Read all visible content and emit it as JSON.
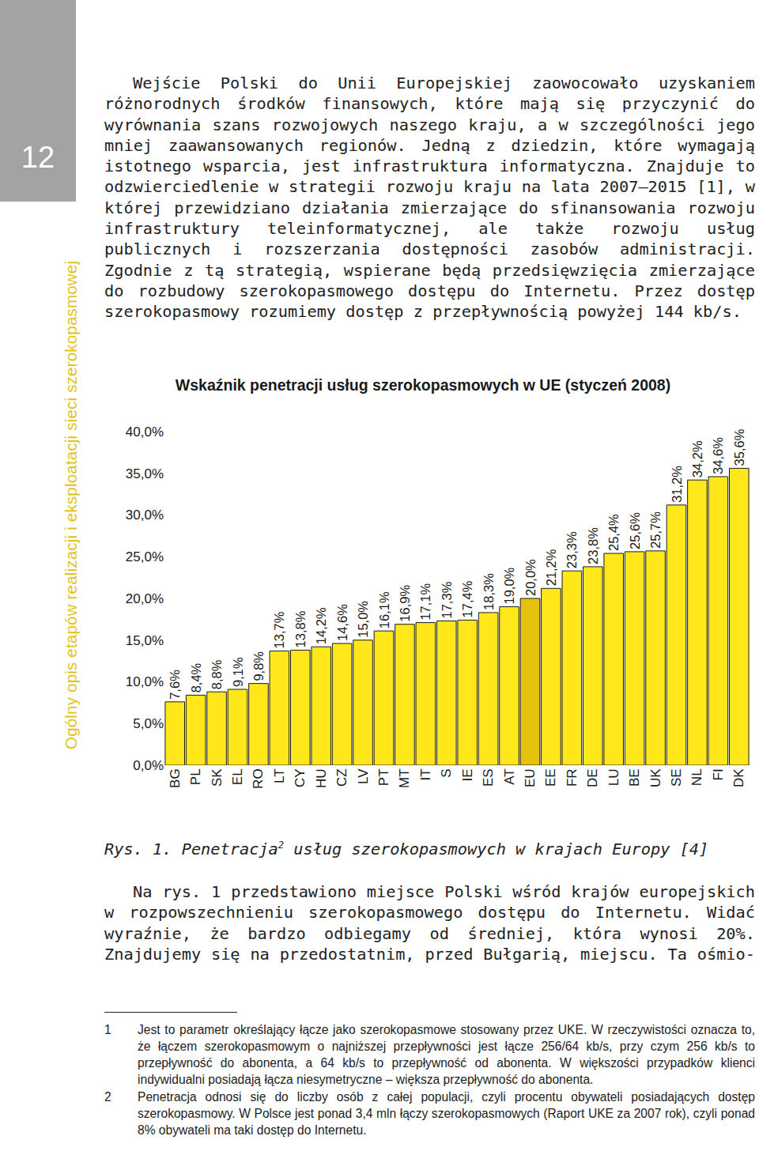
{
  "page_number": "12",
  "running_head": "Ogólny opis etapów realizacji i eksploatacji sieci szerokopasmowej",
  "paragraphs": [
    "Wejście Polski do Unii Europejskiej zaowocowało uzyskaniem różnorodnych środków finansowych, które mają się przyczynić do wyrównania szans rozwojowych naszego kraju, a w szczególności jego mniej zaawansowanych regionów. Jedną z dziedzin, które wymagają istotnego wsparcia, jest infrastruktura informatyczna. Znajduje to odzwierciedlenie w strategii rozwoju kraju na lata 2007–2015 [1], w której przewidziano działania zmierzające do sfinansowania rozwoju infrastruktury teleinformatycznej, ale także rozwoju usług publicznych i rozszerzania dostępności zasobów administracji. Zgodnie z tą strategią, wspierane będą przedsięwzięcia zmierzające do rozbudowy szerokopasmowego dostępu do Internetu. Przez dostęp szerokopasmowy rozumiemy dostęp z przepływnością powyżej 144 kb/s."
  ],
  "chart_data": {
    "type": "bar",
    "title": "Wskaźnik penetracji usług szerokopasmowych w UE (styczeń 2008)",
    "categories": [
      "BG",
      "PL",
      "SK",
      "EL",
      "RO",
      "LT",
      "CY",
      "HU",
      "CZ",
      "LV",
      "PT",
      "MT",
      "IT",
      "S",
      "IE",
      "ES",
      "AT",
      "EU",
      "EE",
      "FR",
      "DE",
      "LU",
      "BE",
      "UK",
      "SE",
      "NL",
      "FI",
      "DK"
    ],
    "values": [
      7.6,
      8.4,
      8.8,
      9.1,
      9.8,
      13.7,
      13.8,
      14.2,
      14.6,
      15.0,
      16.1,
      16.9,
      17.1,
      17.3,
      17.4,
      18.3,
      19.0,
      20.0,
      21.2,
      23.3,
      23.8,
      25.4,
      25.6,
      25.7,
      31.2,
      34.2,
      34.6,
      35.6
    ],
    "value_labels": [
      "7,6%",
      "8,4%",
      "8,8%",
      "9,1%",
      "9,8%",
      "13,7%",
      "13,8%",
      "14,2%",
      "14,6%",
      "15,0%",
      "16,1%",
      "16,9%",
      "17,1%",
      "17,3%",
      "17,4%",
      "18,3%",
      "19,0%",
      "20,0%",
      "21,2%",
      "23,3%",
      "23,8%",
      "25,4%",
      "25,6%",
      "25,7%",
      "31,2%",
      "34,2%",
      "34,6%",
      "35,6%"
    ],
    "colors": [
      "#ffe71a",
      "#ffe71a",
      "#ffe71a",
      "#ffe71a",
      "#ffe71a",
      "#ffe71a",
      "#ffe71a",
      "#ffe71a",
      "#ffe71a",
      "#ffe71a",
      "#ffe71a",
      "#ffe71a",
      "#ffe71a",
      "#ffe71a",
      "#ffe71a",
      "#ffe71a",
      "#ffe71a",
      "#e5c20c",
      "#ffe71a",
      "#ffe71a",
      "#ffe71a",
      "#ffe71a",
      "#ffe71a",
      "#ffe71a",
      "#ffe71a",
      "#ffe71a",
      "#ffe71a",
      "#ffe71a"
    ],
    "ylim": [
      0,
      40
    ],
    "yticks": [
      {
        "value": 0,
        "label": "0,0%"
      },
      {
        "value": 5,
        "label": "5,0%"
      },
      {
        "value": 10,
        "label": "10,0%"
      },
      {
        "value": 15,
        "label": "15,0%"
      },
      {
        "value": 20,
        "label": "20,0%"
      },
      {
        "value": 25,
        "label": "25,0%"
      },
      {
        "value": 30,
        "label": "30,0%"
      },
      {
        "value": 35,
        "label": "35,0%"
      },
      {
        "value": 40,
        "label": "40,0%"
      }
    ],
    "grid": false,
    "data_labels": true
  },
  "caption": {
    "text": "Rys. 1. Penetracja",
    "superscript": "2",
    "text_after": "usług szerokopasmowych w krajach Europy [4]"
  },
  "paragraphs_after": [
    "Na rys. 1 przedstawiono miejsce Polski wśród krajów europejskich w rozpowszechnieniu szerokopasmowego dostępu do Internetu. Widać wyraźnie, że bardzo odbiegamy od średniej, która wynosi 20%. Znajdujemy się na przedostatnim, przed Bułgarią, miejscu. Ta ośmio-"
  ],
  "footnotes": [
    {
      "number": "1",
      "text": "Jest to parametr określający łącze jako szerokopasmowe stosowany przez UKE. W rzeczywistości oznacza to, że łączem szerokopasmowym o najniższej przepływności jest łącze 256/64 kb/s, przy czym 256 kb/s to przepływność do abonenta, a 64 kb/s to przepływność od abonenta. W większości przypadków klienci indywidualni posiadają łącza niesymetryczne – większa przepływność do abonenta."
    },
    {
      "number": "2",
      "text": "Penetracja odnosi się do liczby osób z całej populacji, czyli procentu obywateli posiadających dostęp szerokopasmowy. W Polsce jest ponad 3,4 mln łączy szerokopasmowych (Raport UKE za 2007 rok), czyli ponad 8% obywateli ma taki dostęp do Internetu."
    }
  ]
}
